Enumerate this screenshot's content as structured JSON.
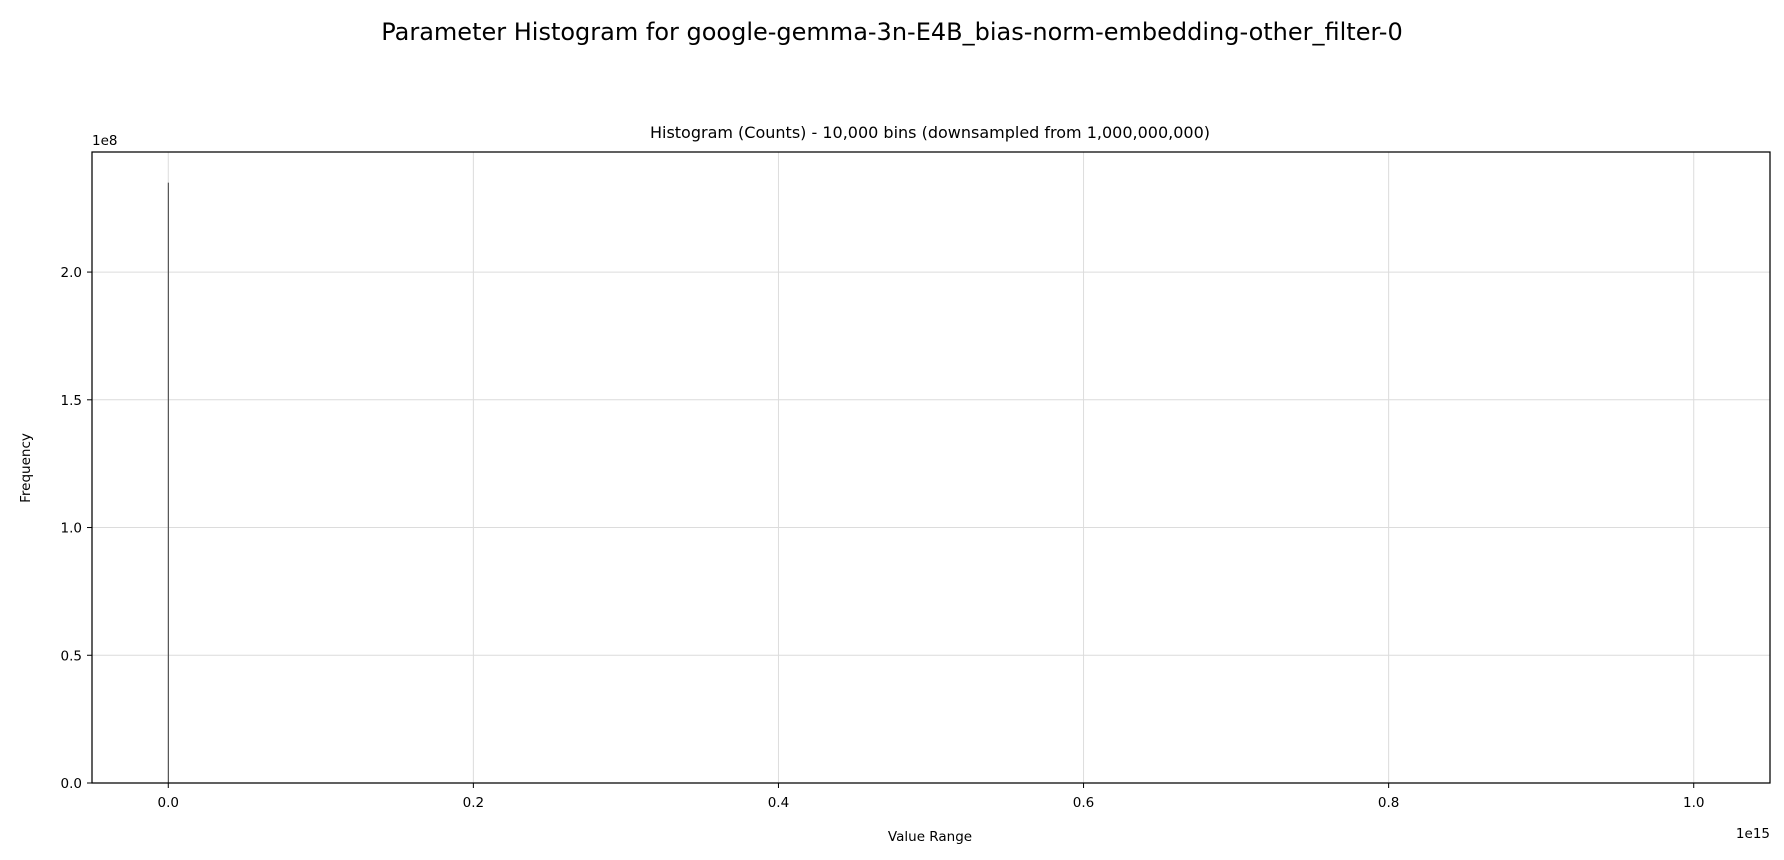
{
  "chart_data": {
    "type": "bar",
    "suptitle": "Parameter Histogram for google-gemma-3n-E4B_bias-norm-embedding-other_filter-0",
    "title": "Histogram (Counts) - 10,000 bins (downsampled from 1,000,000,000)",
    "xlabel": "Value Range",
    "ylabel": "Frequency",
    "x_offset_label": "1e15",
    "y_offset_label": "1e8",
    "xlim": [
      -0.05,
      1.05
    ],
    "ylim": [
      0,
      2.47
    ],
    "x_scale_exponent": 15,
    "y_scale_exponent": 8,
    "x_ticks": [
      0.0,
      0.2,
      0.4,
      0.6,
      0.8,
      1.0
    ],
    "x_tick_labels": [
      "0.0",
      "0.2",
      "0.4",
      "0.6",
      "0.8",
      "1.0"
    ],
    "y_ticks": [
      0.0,
      0.5,
      1.0,
      1.5,
      2.0
    ],
    "y_tick_labels": [
      "0.0",
      "0.5",
      "1.0",
      "1.5",
      "2.0"
    ],
    "grid": true,
    "bar_color": "#555555",
    "bars": [
      {
        "x": 0.0,
        "value": 2.35
      }
    ]
  }
}
